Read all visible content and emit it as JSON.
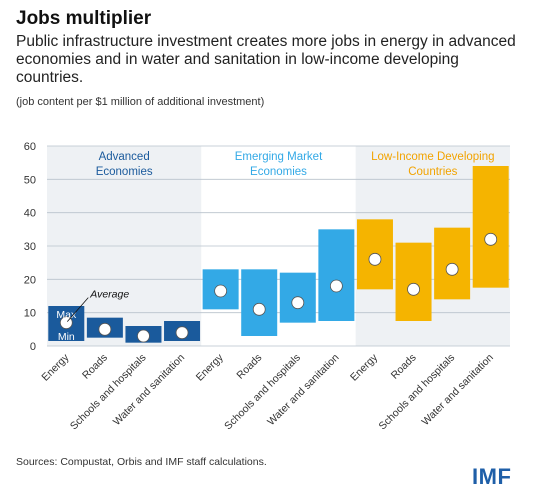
{
  "header": {
    "title": "Jobs multiplier",
    "subtitle": "Public infrastructure investment creates more jobs in energy in advanced economies and in water and sanitation in low-income developing countries.",
    "note": "(job content per $1 million of additional investment)"
  },
  "footer": {
    "source": "Sources: Compustat, Orbis and IMF staff calculations.",
    "logo": "IMF"
  },
  "chart_data": {
    "type": "range-bar",
    "ylim": [
      0,
      60
    ],
    "yticks": [
      0,
      10,
      20,
      30,
      40,
      50,
      60
    ],
    "grid": true,
    "annotations": {
      "max": "Max",
      "min": "Min",
      "average": "Average"
    },
    "groups": [
      {
        "label": [
          "Advanced",
          "Economies"
        ],
        "color": "#1a5a9c",
        "bg": "#eef1f4",
        "labelColor": "#1a5a9c",
        "categories": [
          "Energy",
          "Roads",
          "Schools and hospitals",
          "Water and sanitation"
        ],
        "min": [
          1.5,
          2.5,
          1.0,
          1.5
        ],
        "max": [
          12.0,
          8.5,
          6.0,
          7.5
        ],
        "avg": [
          7.0,
          5.0,
          3.0,
          4.0
        ]
      },
      {
        "label": [
          "Emerging Market",
          "Economies"
        ],
        "color": "#33a9e6",
        "bg": "#ffffff",
        "labelColor": "#33a9e6",
        "categories": [
          "Energy",
          "Roads",
          "Schools and hospitals",
          "Water and sanitation"
        ],
        "min": [
          11.0,
          3.0,
          7.0,
          7.5
        ],
        "max": [
          23.0,
          23.0,
          22.0,
          35.0
        ],
        "avg": [
          16.5,
          11.0,
          13.0,
          18.0
        ]
      },
      {
        "label": [
          "Low-Income Developing",
          "Countries"
        ],
        "color": "#f5b400",
        "bg": "#eef1f4",
        "labelColor": "#f2a300",
        "categories": [
          "Energy",
          "Roads",
          "Schools and hospitals",
          "Water and sanitation"
        ],
        "min": [
          17.0,
          7.5,
          14.0,
          17.5
        ],
        "max": [
          38.0,
          31.0,
          35.5,
          54.0
        ],
        "avg": [
          26.0,
          17.0,
          23.0,
          32.0
        ]
      }
    ]
  }
}
